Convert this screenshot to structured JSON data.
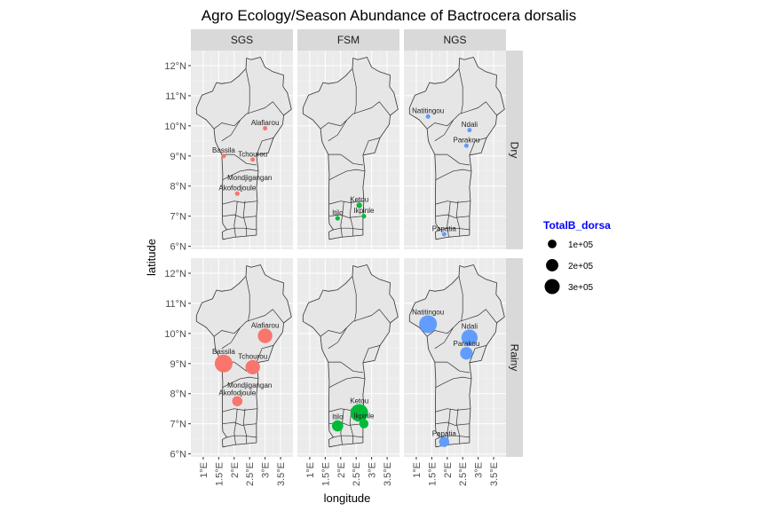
{
  "chart_data": {
    "type": "scatter",
    "title": "Agro Ecology/Season Abundance of Bactrocera dorsalis",
    "xlabel": "longitude",
    "ylabel": "latitude",
    "xlim": [
      0.6,
      3.9
    ],
    "ylim": [
      5.9,
      12.5
    ],
    "x_ticks": [
      1,
      1.5,
      2,
      2.5,
      3,
      3.5
    ],
    "x_tick_labels": [
      "1°E",
      "1.5°E",
      "2°E",
      "2.5°E",
      "3°E",
      "3.5°E"
    ],
    "y_ticks": [
      6,
      7,
      8,
      9,
      10,
      11,
      12
    ],
    "y_tick_labels": [
      "6°N",
      "7°N",
      "8°N",
      "9°N",
      "10°N",
      "11°N",
      "12°N"
    ],
    "columns": [
      "SGS",
      "FSM",
      "NGS"
    ],
    "rows": [
      "Dry",
      "Rainy"
    ],
    "colors": {
      "SGS": "#F8766D",
      "FSM": "#00BA38",
      "NGS": "#619CFF"
    },
    "legend": {
      "title": "TotalB_dorsa",
      "title_color": "#0000FF",
      "position": "right",
      "entries": [
        {
          "label": "1e+05",
          "value": 100000
        },
        {
          "label": "2e+05",
          "value": 200000
        },
        {
          "label": "3e+05",
          "value": 300000
        }
      ]
    },
    "series": [
      {
        "zone": "SGS",
        "season": "Dry",
        "points": [
          {
            "site": "Alafiarou",
            "x": 3.0,
            "y": 9.92,
            "size": 5000
          },
          {
            "site": "Bassila",
            "x": 1.66,
            "y": 9.0,
            "size": 20000
          },
          {
            "site": "Tchourou",
            "x": 2.6,
            "y": 8.88,
            "size": 8000
          },
          {
            "site": "Mondjigangan",
            "x": 2.5,
            "y": 8.1,
            "size": 0
          },
          {
            "site": "Akofodjoule",
            "x": 2.1,
            "y": 7.75,
            "size": 20000
          }
        ]
      },
      {
        "zone": "FSM",
        "season": "Dry",
        "points": [
          {
            "site": "Ketou",
            "x": 2.6,
            "y": 7.36,
            "size": 30000
          },
          {
            "site": "Itilo",
            "x": 1.9,
            "y": 6.93,
            "size": 20000
          },
          {
            "site": "Ikpinle",
            "x": 2.75,
            "y": 7.0,
            "size": 20000
          }
        ]
      },
      {
        "zone": "NGS",
        "season": "Dry",
        "points": [
          {
            "site": "Natitingou",
            "x": 1.38,
            "y": 10.31,
            "size": 20000
          },
          {
            "site": "Ndali",
            "x": 2.72,
            "y": 9.86,
            "size": 15000
          },
          {
            "site": "Parakou",
            "x": 2.62,
            "y": 9.34,
            "size": 10000
          },
          {
            "site": "Papatia",
            "x": 1.9,
            "y": 6.4,
            "size": 10000
          }
        ]
      },
      {
        "zone": "SGS",
        "season": "Rainy",
        "points": [
          {
            "site": "Alafiarou",
            "x": 3.0,
            "y": 9.92,
            "size": 200000
          },
          {
            "site": "Bassila",
            "x": 1.66,
            "y": 9.0,
            "size": 300000
          },
          {
            "site": "Tchourou",
            "x": 2.6,
            "y": 8.88,
            "size": 200000
          },
          {
            "site": "Mondjigangan",
            "x": 2.5,
            "y": 8.1,
            "size": 0
          },
          {
            "site": "Akofodjoule",
            "x": 2.1,
            "y": 7.75,
            "size": 100000
          }
        ]
      },
      {
        "zone": "FSM",
        "season": "Rainy",
        "points": [
          {
            "site": "Ketou",
            "x": 2.6,
            "y": 7.36,
            "size": 300000
          },
          {
            "site": "Itilo",
            "x": 1.9,
            "y": 6.93,
            "size": 120000
          },
          {
            "site": "Ikpinle",
            "x": 2.75,
            "y": 7.0,
            "size": 80000
          }
        ]
      },
      {
        "zone": "NGS",
        "season": "Rainy",
        "points": [
          {
            "site": "Natitingou",
            "x": 1.38,
            "y": 10.31,
            "size": 300000
          },
          {
            "site": "Ndali",
            "x": 2.72,
            "y": 9.86,
            "size": 250000
          },
          {
            "site": "Parakou",
            "x": 2.62,
            "y": 9.34,
            "size": 150000
          },
          {
            "site": "Papatia",
            "x": 1.9,
            "y": 6.4,
            "size": 100000
          }
        ]
      }
    ]
  }
}
